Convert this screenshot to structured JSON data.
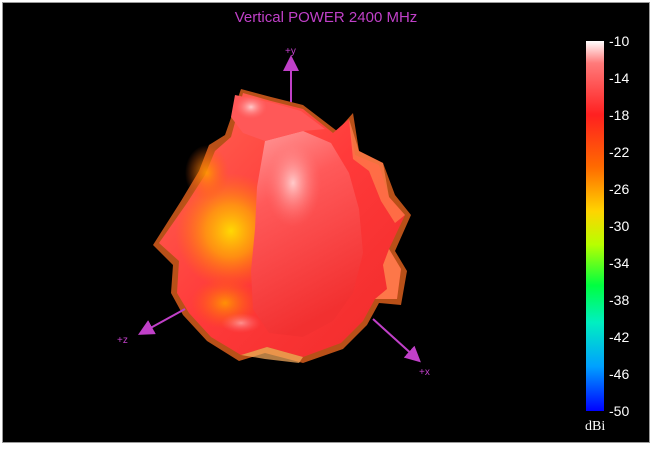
{
  "chart_data": {
    "type": "3d-radiation-pattern",
    "title": "Vertical POWER 2400  MHz",
    "axes": {
      "y_label": "+y",
      "z_label": "+z",
      "x_label": "+x"
    },
    "colorbar": {
      "unit": "dBi",
      "min": -50,
      "max": -10,
      "ticks": [
        "-10",
        "-14",
        "-18",
        "-22",
        "-26",
        "-30",
        "-34",
        "-38",
        "-42",
        "-46",
        "-50"
      ],
      "colors": {
        "top": "#ffffff",
        "high": "#ff2020",
        "mid": "#ffd400",
        "low_mid": "#00ff40",
        "bottom": "#0000ff"
      }
    }
  },
  "colors": {
    "background": "#000000",
    "title": "#c040c8",
    "axis": "#c040c8",
    "legend_text": "#ffffff"
  }
}
